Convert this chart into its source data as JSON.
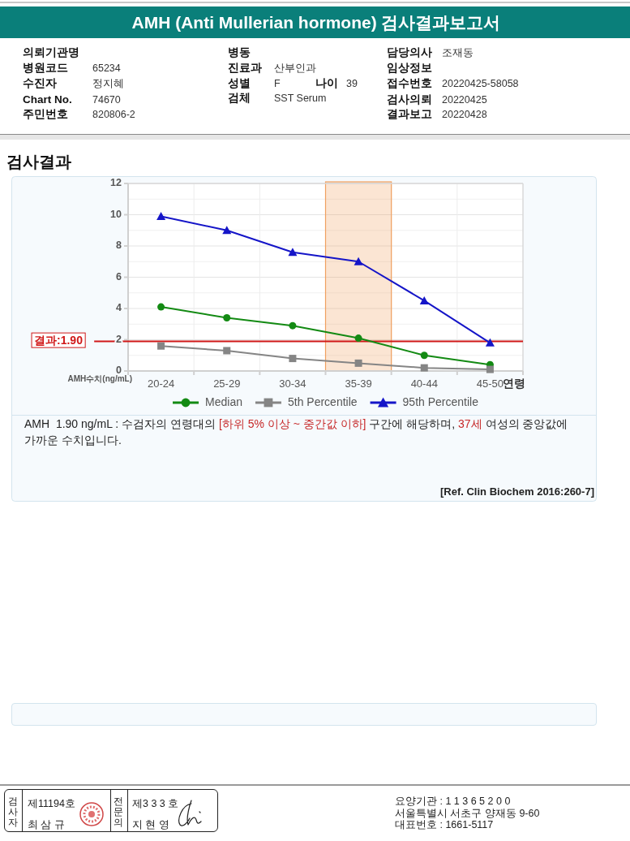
{
  "chart_data": {
    "type": "line",
    "title": "AMH (Anti Mullerian hormone) 검사결과보고서",
    "subtitle": "검사결과",
    "xlabel": "연령",
    "ylabel": "AMH수치(ng/mL)",
    "categories": [
      "20-24",
      "25-29",
      "30-34",
      "35-39",
      "40-44",
      "45-50"
    ],
    "series": [
      {
        "name": "Median",
        "color": "#138a13",
        "marker": "circle",
        "values": [
          4.1,
          3.4,
          2.9,
          2.1,
          1.0,
          0.4
        ]
      },
      {
        "name": "5th Percentile",
        "color": "#858585",
        "marker": "square",
        "values": [
          1.6,
          1.3,
          0.8,
          0.5,
          0.2,
          0.1
        ]
      },
      {
        "name": "95th Percentile",
        "color": "#1515c8",
        "marker": "triangle",
        "values": [
          9.9,
          9.0,
          7.6,
          7.0,
          4.5,
          1.8
        ]
      }
    ],
    "ylim": [
      0,
      12
    ],
    "yticks": [
      0,
      2,
      4,
      6,
      8,
      10,
      12
    ],
    "grid": true,
    "legend": "bottom",
    "line_style": "solid",
    "ref_lines": [
      {
        "axis": "y",
        "value": 1.9,
        "label": "결과:1.90",
        "color": "#d01818"
      }
    ],
    "bands": [
      {
        "axis": "x",
        "from": "35-39",
        "to": "35-39",
        "color": "#f0a060"
      }
    ],
    "annotations": [
      "의뢰기관명",
      "병원코드",
      "65234",
      "수진자",
      "정지혜",
      "Chart No.",
      "74670",
      "주민번호",
      "820806-2",
      "병동",
      "진료과",
      "산부인과",
      "성별",
      "F",
      "나이",
      "39",
      "검체",
      "SST Serum",
      "담당의사",
      "조재동",
      "임상정보",
      "접수번호",
      "20220425-58058",
      "검사의뢰",
      "20220425",
      "결과보고",
      "20220428",
      "AMH  1.90 ng/mL : 수검자의 연령대의",
      "[하위 5% 이상 ~ 중간값 이하]",
      "구간에 해당하며,",
      "37세",
      "여성의 중앙값에",
      "가까운 수치입니다.",
      "[Ref. Clin Biochem 2016:260-7]",
      "검사자",
      "제11194호",
      "최 삼 규",
      "전문의",
      "제3 3 3 호",
      "지 현 영",
      "요양기관 : 1 1 3 6 5 2 0 0",
      "서울특별시 서초구 양재동 9-60",
      "대표번호 : 1661-5117"
    ]
  }
}
